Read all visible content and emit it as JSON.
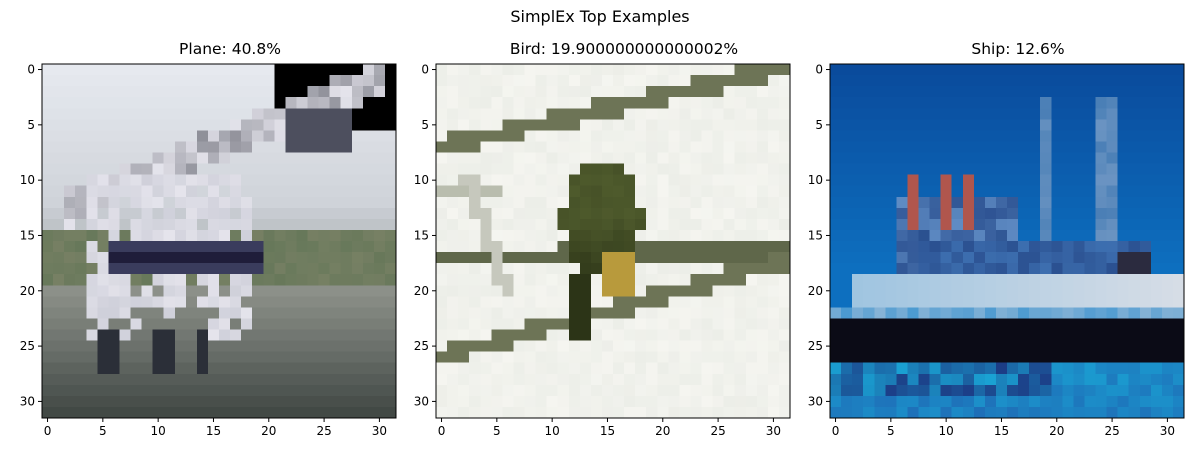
{
  "figure": {
    "suptitle": "SimplEx Top Examples"
  },
  "chart_data": [
    {
      "type": "heatmap",
      "title": "Plane: 40.8%",
      "label": "Plane",
      "percent_text": "40.8%",
      "xlim": [
        -0.5,
        31.5
      ],
      "ylim": [
        31.5,
        -0.5
      ],
      "xticks": [
        0,
        5,
        10,
        15,
        20,
        25,
        30
      ],
      "yticks": [
        0,
        5,
        10,
        15,
        20,
        25,
        30
      ],
      "grid": false,
      "image_size": [
        32,
        32
      ],
      "colors": {
        "sky_top": "#e6e9ef",
        "sky_bottom": "#cfd3d9",
        "tint": "#d9d2ee",
        "body": "#e5e4ec",
        "wing": "#8e8f98",
        "nose": "#4d4f5e",
        "stripe": "#1f1d3a",
        "ground_green": "#67785a",
        "runway": "#8c9089",
        "dark": "#3b423f"
      }
    },
    {
      "type": "heatmap",
      "title": "Bird: 19.900000000000002%",
      "label": "Bird",
      "percent_text": "19.900000000000002%",
      "xlim": [
        -0.5,
        31.5
      ],
      "ylim": [
        31.5,
        -0.5
      ],
      "xticks": [
        0,
        5,
        10,
        15,
        20,
        25,
        30
      ],
      "yticks": [
        0,
        5,
        10,
        15,
        20,
        25,
        30
      ],
      "grid": false,
      "image_size": [
        32,
        32
      ],
      "colors": {
        "background": "#eceee8",
        "branch": "#6d7456",
        "bird": "#4e5a2c",
        "bird_dark": "#2c3417",
        "bird_beak": "#b89a3c"
      }
    },
    {
      "type": "heatmap",
      "title": "Ship: 12.6%",
      "label": "Ship",
      "percent_text": "12.6%",
      "xlim": [
        -0.5,
        31.5
      ],
      "ylim": [
        31.5,
        -0.5
      ],
      "xticks": [
        0,
        5,
        10,
        15,
        20,
        25,
        30
      ],
      "yticks": [
        0,
        5,
        10,
        15,
        20,
        25,
        30
      ],
      "grid": false,
      "image_size": [
        32,
        32
      ],
      "colors": {
        "sky_top": "#0a4b9c",
        "sky_bottom": "#0d6fbf",
        "deck": "#9cc3e0",
        "hull_white": "#d6dde6",
        "hull_dark": "#0b0b16",
        "water": "#1aa3d4",
        "cabin": "#2a4f8f",
        "red": "#b0564d",
        "mast": "#4a7fb6"
      }
    }
  ]
}
